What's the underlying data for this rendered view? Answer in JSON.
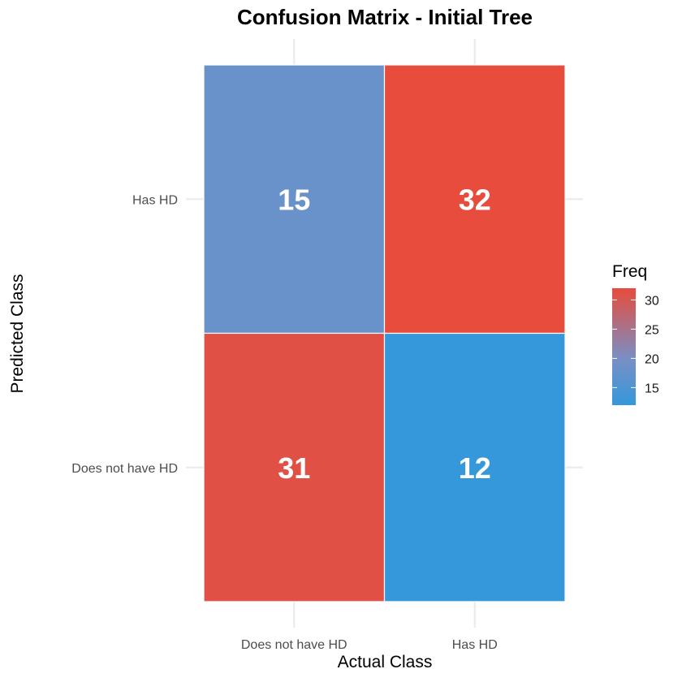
{
  "chart_data": {
    "type": "heatmap",
    "title": "Confusion Matrix - Initial Tree",
    "xlabel": "Actual Class",
    "ylabel": "Predicted Class",
    "x_categories": [
      "Does not have HD",
      "Has HD"
    ],
    "y_categories": [
      "Does not have HD",
      "Has HD"
    ],
    "cells": [
      {
        "actual": "Does not have HD",
        "predicted": "Has HD",
        "value": 15
      },
      {
        "actual": "Has HD",
        "predicted": "Has HD",
        "value": 32
      },
      {
        "actual": "Does not have HD",
        "predicted": "Does not have HD",
        "value": 31
      },
      {
        "actual": "Has HD",
        "predicted": "Does not have HD",
        "value": 12
      }
    ],
    "legend": {
      "title": "Freq",
      "ticks": [
        15,
        20,
        25,
        30
      ],
      "range": [
        12,
        32
      ],
      "low_color": "#3498DB",
      "mid_color": "#7A8FC4",
      "high_color": "#E74C3C"
    },
    "grid": true,
    "legend_position": "right"
  }
}
